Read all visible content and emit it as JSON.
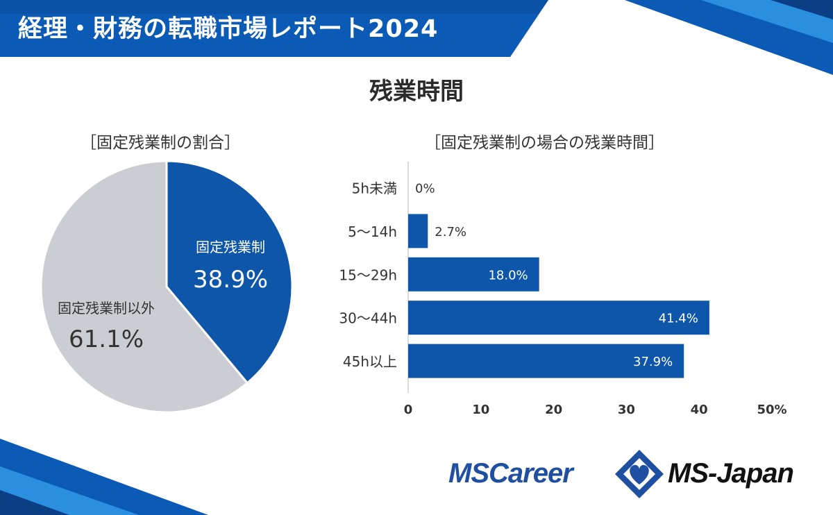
{
  "header": {
    "title": "経理・財務の転職市場レポート2024"
  },
  "main_title": "残業時間",
  "colors": {
    "blue": "#0d56aa",
    "gray": "#cbcdd2",
    "dark_blue": "#0b4a9a"
  },
  "chart_data": [
    {
      "type": "pie",
      "title": "［固定残業制の割合］",
      "slices": [
        {
          "label": "固定残業制",
          "value": 38.9,
          "display": "38.9%",
          "color": "#0d56aa"
        },
        {
          "label": "固定残業制以外",
          "value": 61.1,
          "display": "61.1%",
          "color": "#cbcdd2"
        }
      ]
    },
    {
      "type": "bar",
      "orientation": "horizontal",
      "title": "［固定残業制の場合の残業時間］",
      "categories": [
        "5h未満",
        "5〜14h",
        "15〜29h",
        "30〜44h",
        "45h以上"
      ],
      "values": [
        0,
        2.7,
        18.0,
        41.4,
        37.9
      ],
      "labels": [
        "0%",
        "2.7%",
        "18.0%",
        "41.4%",
        "37.9%"
      ],
      "xlim": [
        0,
        50
      ],
      "xticks": [
        "0",
        "10",
        "20",
        "30",
        "40",
        "50%"
      ],
      "color": "#0d56aa"
    }
  ],
  "logos": {
    "mscareer": "MSCareer",
    "msjapan": "MS-Japan"
  }
}
